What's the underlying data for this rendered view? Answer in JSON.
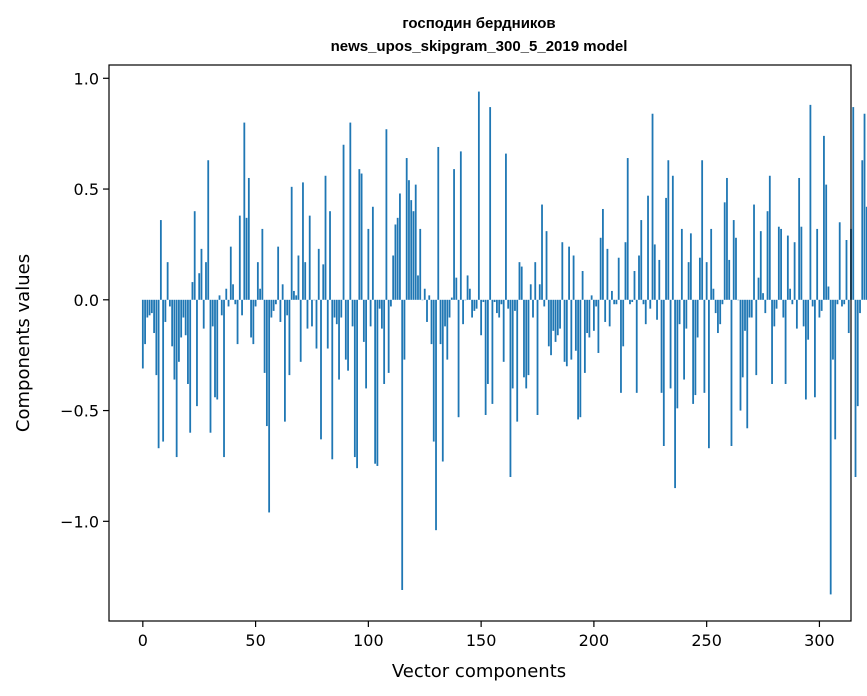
{
  "chart_data": {
    "type": "bar",
    "title_lines": [
      "господин бердников",
      "news_upos_skipgram_300_5_2019 model"
    ],
    "xlabel": "Vector components",
    "ylabel": "Components values",
    "xlim": [
      -15,
      314
    ],
    "ylim": [
      -1.45,
      1.06
    ],
    "x_ticks": [
      {
        "value": 0,
        "label": "0"
      },
      {
        "value": 50,
        "label": "50"
      },
      {
        "value": 100,
        "label": "100"
      },
      {
        "value": 150,
        "label": "150"
      },
      {
        "value": 200,
        "label": "200"
      },
      {
        "value": 250,
        "label": "250"
      },
      {
        "value": 300,
        "label": "300"
      }
    ],
    "y_ticks": [
      {
        "value": 1.0,
        "label": "1.0"
      },
      {
        "value": 0.5,
        "label": "0.5"
      },
      {
        "value": 0.0,
        "label": "0.0"
      },
      {
        "value": -0.5,
        "label": "−0.5"
      },
      {
        "value": -1.0,
        "label": "−1.0"
      }
    ],
    "grid": false,
    "legend": "none",
    "bar_color": "#1f77b4",
    "values": [
      -0.31,
      -0.2,
      -0.08,
      -0.07,
      -0.06,
      -0.15,
      -0.34,
      -0.67,
      0.36,
      -0.64,
      -0.1,
      0.17,
      -0.03,
      -0.21,
      -0.36,
      -0.71,
      -0.28,
      -0.17,
      -0.08,
      -0.16,
      -0.38,
      -0.6,
      0.08,
      0.4,
      -0.48,
      0.12,
      0.23,
      -0.13,
      0.17,
      0.63,
      -0.6,
      -0.12,
      -0.44,
      -0.45,
      0.02,
      -0.07,
      -0.71,
      0.05,
      -0.03,
      0.24,
      0.07,
      -0.02,
      -0.2,
      0.38,
      -0.07,
      0.8,
      0.37,
      0.55,
      -0.17,
      -0.2,
      -0.03,
      0.17,
      0.05,
      0.32,
      -0.33,
      -0.57,
      -0.96,
      -0.08,
      -0.05,
      -0.02,
      0.24,
      -0.1,
      0.07,
      -0.55,
      -0.07,
      -0.34,
      0.51,
      0.04,
      0.02,
      0.2,
      -0.28,
      0.53,
      0.17,
      -0.13,
      0.38,
      -0.12,
      0.0,
      -0.22,
      0.23,
      -0.63,
      0.16,
      0.56,
      -0.22,
      0.4,
      -0.72,
      -0.08,
      -0.11,
      -0.36,
      -0.08,
      0.7,
      -0.27,
      -0.32,
      0.8,
      -0.12,
      -0.71,
      -0.76,
      0.59,
      0.57,
      -0.19,
      -0.4,
      0.32,
      -0.12,
      0.42,
      -0.74,
      -0.75,
      -0.04,
      -0.13,
      -0.38,
      0.77,
      -0.33,
      -0.03,
      0.2,
      0.34,
      0.37,
      0.48,
      -1.31,
      -0.27,
      0.64,
      0.54,
      0.45,
      0.4,
      0.52,
      0.11,
      0.32,
      0.0,
      0.05,
      -0.1,
      0.02,
      -0.2,
      -0.64,
      -1.04,
      0.69,
      -0.2,
      -0.73,
      -0.12,
      -0.27,
      -0.08,
      0.01,
      0.59,
      0.1,
      -0.53,
      0.67,
      -0.11,
      0.0,
      0.11,
      0.05,
      -0.08,
      -0.05,
      -0.04,
      0.94,
      -0.16,
      -0.01,
      -0.52,
      -0.38,
      0.87,
      -0.47,
      -0.01,
      -0.06,
      -0.08,
      -0.02,
      -0.28,
      0.66,
      -0.04,
      -0.8,
      -0.4,
      -0.05,
      -0.55,
      0.17,
      0.15,
      -0.35,
      -0.4,
      -0.34,
      0.07,
      -0.08,
      0.17,
      -0.52,
      0.07,
      0.43,
      -0.03,
      0.31,
      -0.21,
      -0.25,
      -0.14,
      -0.19,
      -0.16,
      -0.13,
      0.26,
      -0.28,
      -0.3,
      0.24,
      -0.27,
      0.2,
      -0.23,
      -0.54,
      -0.53,
      0.13,
      -0.33,
      -0.15,
      -0.17,
      0.02,
      -0.14,
      -0.03,
      -0.24,
      0.28,
      0.41,
      -0.1,
      0.23,
      -0.12,
      0.04,
      -0.02,
      -0.02,
      0.19,
      -0.42,
      -0.21,
      0.26,
      0.64,
      -0.02,
      -0.01,
      0.13,
      -0.42,
      0.2,
      0.36,
      -0.02,
      -0.11,
      0.47,
      -0.04,
      0.84,
      0.25,
      -0.09,
      0.18,
      -0.42,
      -0.66,
      0.46,
      0.63,
      -0.4,
      0.56,
      -0.85,
      -0.49,
      -0.11,
      0.32,
      -0.36,
      -0.13,
      0.17,
      0.3,
      -0.47,
      -0.43,
      -0.17,
      0.19,
      0.63,
      -0.42,
      0.17,
      -0.67,
      0.32,
      0.05,
      -0.06,
      -0.15,
      -0.11,
      -0.02,
      0.44,
      0.55,
      0.18,
      -0.66,
      0.36,
      0.28,
      0.0,
      -0.5,
      -0.35,
      -0.14,
      -0.58,
      -0.08,
      -0.08,
      0.43,
      -0.34,
      0.1,
      0.31,
      0.03,
      -0.06,
      0.4,
      0.56,
      -0.38,
      -0.12,
      -0.04,
      0.33,
      0.32,
      -0.08,
      -0.38,
      0.29,
      0.05,
      -0.02,
      0.26,
      -0.13,
      0.55,
      0.33,
      -0.12,
      -0.45,
      -0.18,
      0.88,
      -0.03,
      -0.44,
      0.32,
      -0.08,
      -0.05,
      0.74,
      0.52,
      0.06,
      -1.33,
      -0.27,
      -0.63,
      -0.02,
      0.35,
      -0.03,
      -0.02,
      0.27,
      -0.15,
      0.32,
      0.87,
      -0.8,
      -0.48,
      -0.06,
      0.63,
      0.84,
      0.42
    ]
  }
}
